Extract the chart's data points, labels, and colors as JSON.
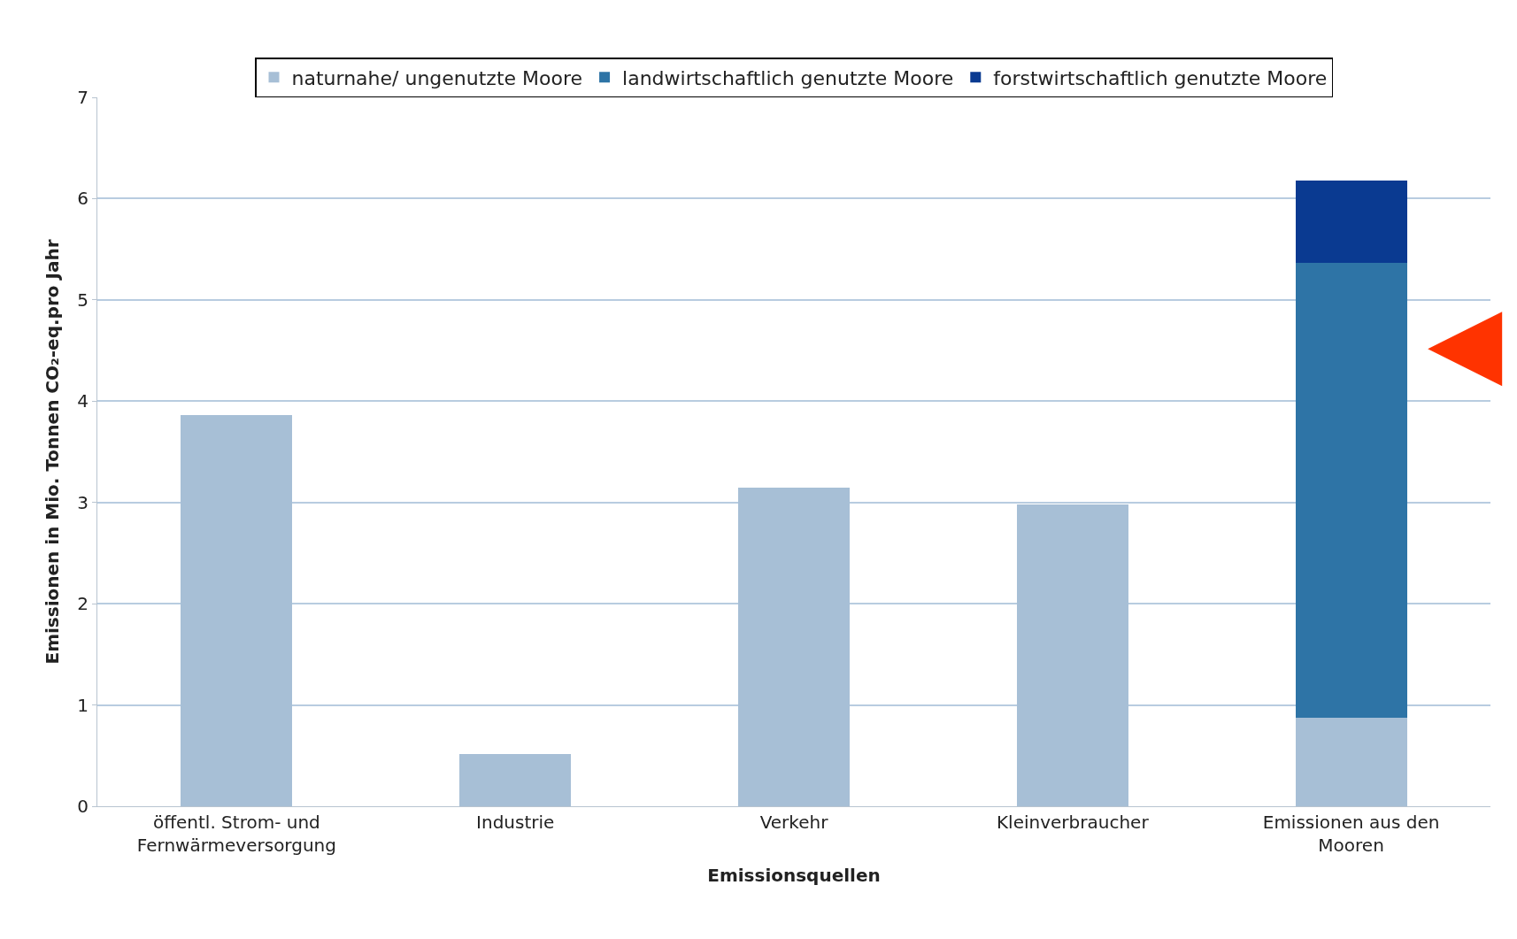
{
  "chart_data": {
    "type": "bar",
    "stacked": true,
    "xlabel": "Emissionsquellen",
    "ylabel": "Emissionen in Mio. Tonnen CO₂-eq.pro Jahr",
    "categories": [
      "öffentl. Strom- und Fernwärmeversorgung",
      "Industrie",
      "Verkehr",
      "Kleinverbraucher",
      "Emissionen aus den Mooren"
    ],
    "series": [
      {
        "name": "naturnahe/ ungenutzte Moore",
        "color": "#a7bfd6",
        "values": [
          3.86,
          0.52,
          3.15,
          2.98,
          0.87
        ]
      },
      {
        "name": "landwirtschaftlich genutzte Moore",
        "color": "#2e74a6",
        "values": [
          null,
          null,
          null,
          null,
          4.5
        ]
      },
      {
        "name": "forstwirtschaftlich genutzte Moore",
        "color": "#0a3a91",
        "values": [
          null,
          null,
          null,
          null,
          0.81
        ]
      }
    ],
    "ylim": [
      0,
      7
    ],
    "yticks": [
      0,
      1,
      2,
      3,
      4,
      5,
      6,
      7
    ],
    "grid": "y",
    "legend": "top"
  }
}
